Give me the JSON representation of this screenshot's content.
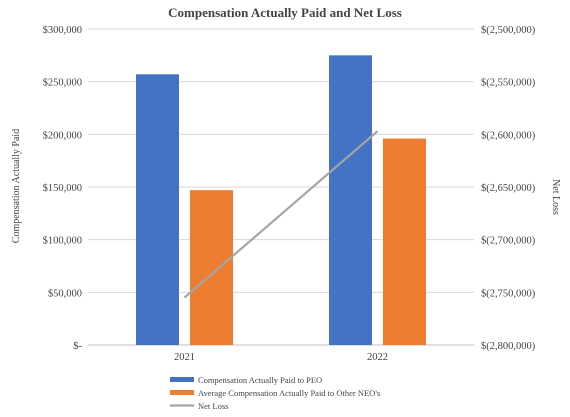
{
  "chart_data": {
    "type": "bar",
    "title": "Compensation  Actually Paid and Net Loss",
    "categories": [
      "2021",
      "2022"
    ],
    "series": [
      {
        "name": "Compensation Actually Paid to PEO",
        "values": [
          257000,
          275000
        ],
        "color": "#4472C4",
        "axis": "left",
        "type": "bar"
      },
      {
        "name": "Average Compensation Actually Paid to Other NEO's",
        "values": [
          147000,
          196000
        ],
        "color": "#ED7D31",
        "axis": "left",
        "type": "bar"
      },
      {
        "name": "Net Loss",
        "values": [
          -2755000,
          -2597000
        ],
        "color": "#A5A5A5",
        "axis": "right",
        "type": "line"
      }
    ],
    "ylabel": "Compensation Actually Paid",
    "y2label": "Net Loss",
    "ylim": [
      0,
      300000
    ],
    "y2lim": [
      -2800000,
      -2500000
    ],
    "yticks": [
      0,
      50000,
      100000,
      150000,
      200000,
      250000,
      300000
    ],
    "ytick_labels": [
      "$-",
      "$50,000",
      "$100,000",
      "$150,000",
      "$200,000",
      "$250,000",
      "$300,000"
    ],
    "y2ticks": [
      -2500000,
      -2550000,
      -2600000,
      -2650000,
      -2700000,
      -2750000,
      -2800000
    ],
    "y2tick_labels": [
      "$(2,500,000)",
      "$(2,550,000)",
      "$(2,600,000)",
      "$(2,650,000)",
      "$(2,700,000)",
      "$(2,750,000)",
      "$(2,800,000)"
    ],
    "grid": true,
    "legend": "bottom"
  }
}
